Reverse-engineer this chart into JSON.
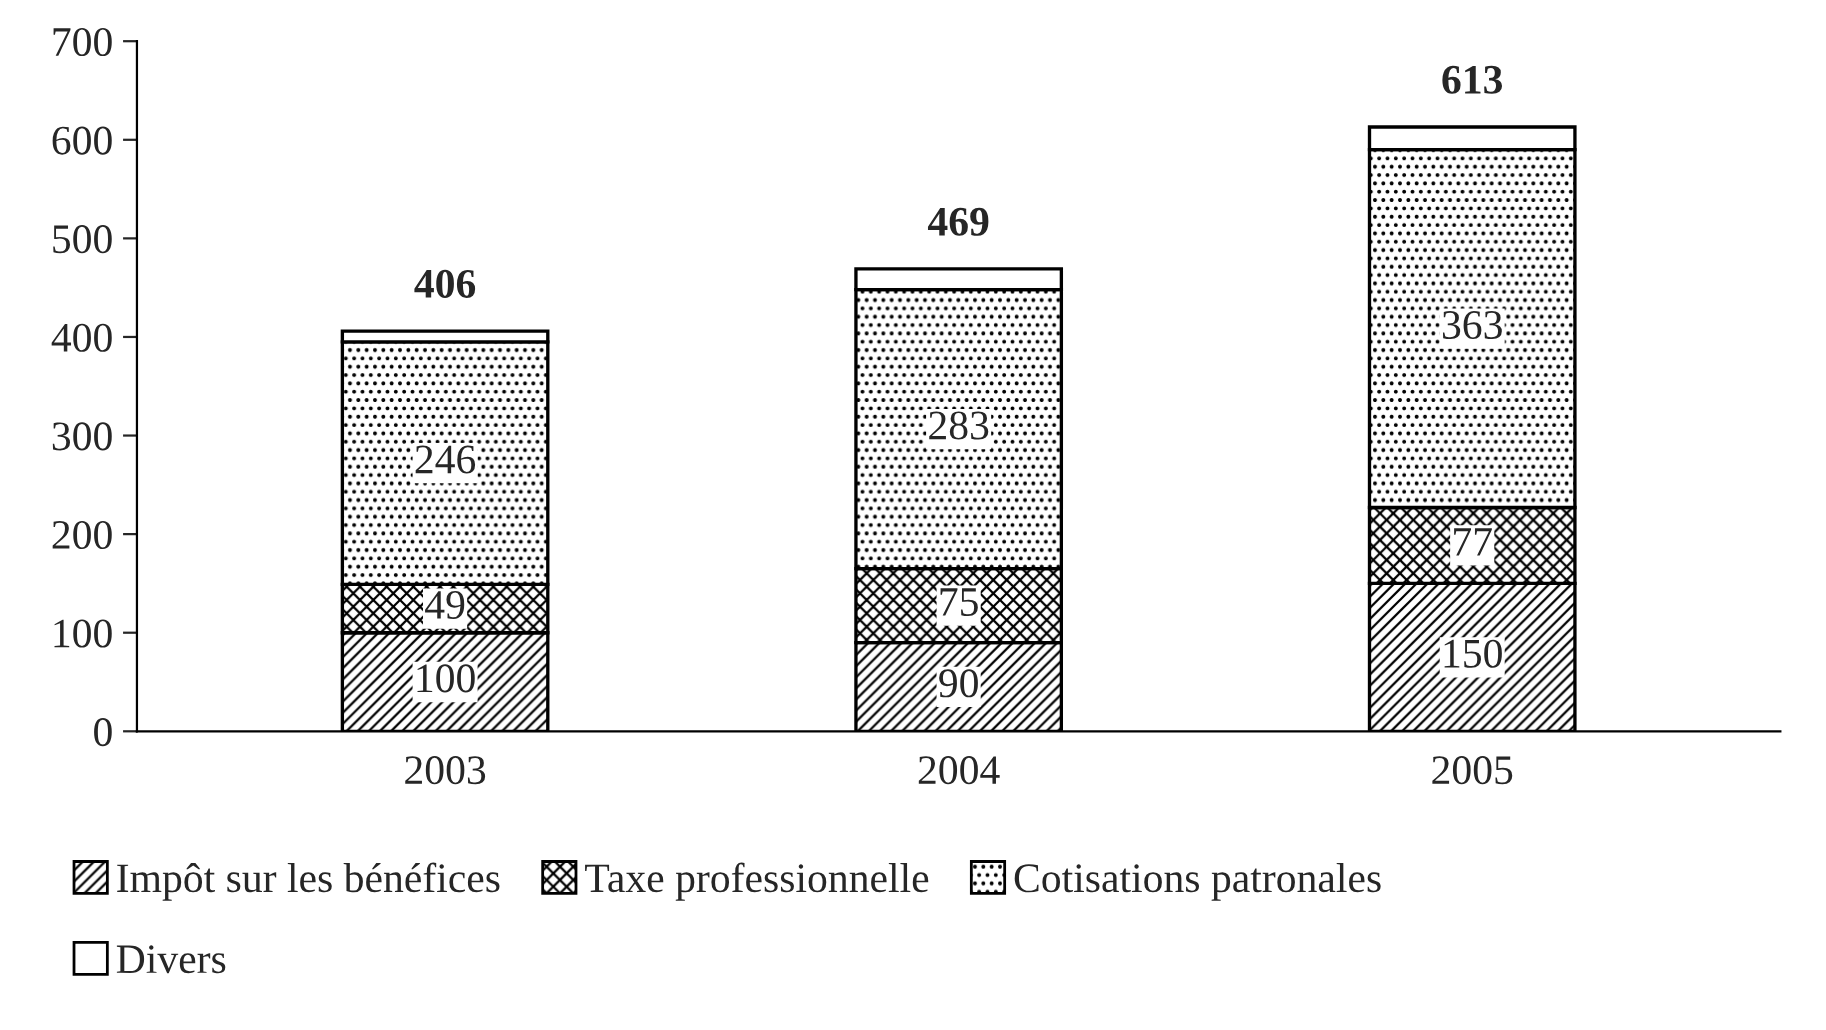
{
  "chart_data": {
    "type": "bar",
    "stacked": true,
    "categories": [
      "2003",
      "2004",
      "2005"
    ],
    "series": [
      {
        "name": "Impôt sur les bénéfices",
        "color": "#000000",
        "values": [
          100,
          90,
          150
        ],
        "value_labels": [
          "100",
          "90",
          "150"
        ]
      },
      {
        "name": "Taxe professionnelle",
        "color": "#000000",
        "values": [
          49,
          75,
          77
        ],
        "value_labels": [
          "49",
          "75",
          "77"
        ]
      },
      {
        "name": "Cotisations patronales",
        "color": "#000000",
        "values": [
          246,
          283,
          363
        ],
        "value_labels": [
          "246",
          "283",
          "363"
        ]
      },
      {
        "name": "Divers",
        "color": "#ffffff",
        "values": [
          11,
          21,
          23
        ],
        "value_labels": [
          null,
          null,
          null
        ]
      }
    ],
    "totals": [
      "406",
      "469",
      "613"
    ],
    "ylim": [
      0,
      700
    ],
    "yticks": [
      0,
      100,
      200,
      300,
      400,
      500,
      600,
      700
    ],
    "grid": false,
    "legend": "bottom"
  }
}
